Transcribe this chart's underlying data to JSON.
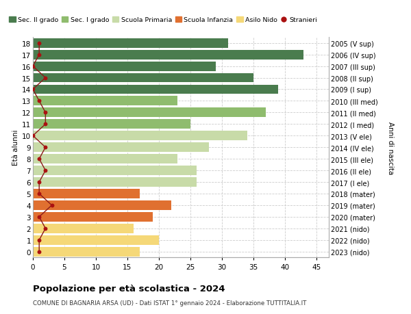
{
  "ages": [
    18,
    17,
    16,
    15,
    14,
    13,
    12,
    11,
    10,
    9,
    8,
    7,
    6,
    5,
    4,
    3,
    2,
    1,
    0
  ],
  "right_labels": [
    "2005 (V sup)",
    "2006 (IV sup)",
    "2007 (III sup)",
    "2008 (II sup)",
    "2009 (I sup)",
    "2010 (III med)",
    "2011 (II med)",
    "2012 (I med)",
    "2013 (V ele)",
    "2014 (IV ele)",
    "2015 (III ele)",
    "2016 (II ele)",
    "2017 (I ele)",
    "2018 (mater)",
    "2019 (mater)",
    "2020 (mater)",
    "2021 (nido)",
    "2022 (nido)",
    "2023 (nido)"
  ],
  "bar_values": [
    31,
    43,
    29,
    35,
    39,
    23,
    37,
    25,
    34,
    28,
    23,
    26,
    26,
    17,
    22,
    19,
    16,
    20,
    17
  ],
  "stranieri": [
    1,
    1,
    0,
    2,
    0,
    1,
    2,
    2,
    0,
    2,
    1,
    2,
    1,
    1,
    3,
    1,
    2,
    1,
    1
  ],
  "bar_colors": [
    "#4a7c4e",
    "#4a7c4e",
    "#4a7c4e",
    "#4a7c4e",
    "#4a7c4e",
    "#8fbc6e",
    "#8fbc6e",
    "#8fbc6e",
    "#c8dba8",
    "#c8dba8",
    "#c8dba8",
    "#c8dba8",
    "#c8dba8",
    "#e07030",
    "#e07030",
    "#e07030",
    "#f5d878",
    "#f5d878",
    "#f5d878"
  ],
  "stranieri_color": "#aa1111",
  "stranieri_line_color": "#8b1a1a",
  "xlim": [
    0,
    47
  ],
  "ylim": [
    -0.5,
    18.5
  ],
  "ylabel_left": "Età alunni",
  "ylabel_right": "Anni di nascita",
  "title": "Popolazione per età scolastica - 2024",
  "subtitle": "COMUNE DI BAGNARIA ARSA (UD) - Dati ISTAT 1° gennaio 2024 - Elaborazione TUTTITALIA.IT",
  "legend_labels": [
    "Sec. II grado",
    "Sec. I grado",
    "Scuola Primaria",
    "Scuola Infanzia",
    "Asilo Nido",
    "Stranieri"
  ],
  "legend_colors": [
    "#4a7c4e",
    "#8fbc6e",
    "#c8dba8",
    "#e07030",
    "#f5d878",
    "#aa1111"
  ],
  "xticks": [
    0,
    5,
    10,
    15,
    20,
    25,
    30,
    35,
    40,
    45
  ],
  "grid_color": "#cccccc",
  "bg_color": "#ffffff",
  "bar_height": 0.82
}
